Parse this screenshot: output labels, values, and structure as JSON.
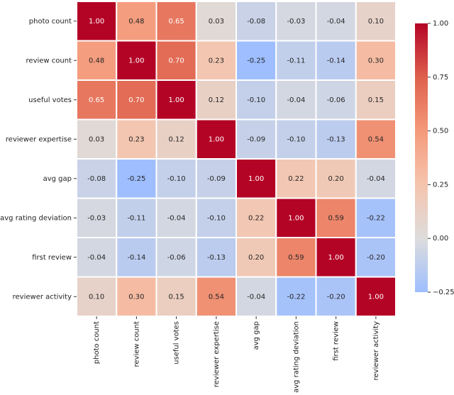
{
  "chart_data": {
    "type": "heatmap",
    "categories": [
      "photo count",
      "review count",
      "useful votes",
      "reviewer expertise",
      "avg gap",
      "avg rating deviation",
      "first review",
      "reviewer activity"
    ],
    "values": [
      [
        1.0,
        0.48,
        0.65,
        0.03,
        -0.08,
        -0.03,
        -0.04,
        0.1
      ],
      [
        0.48,
        1.0,
        0.7,
        0.23,
        -0.25,
        -0.11,
        -0.14,
        0.3
      ],
      [
        0.65,
        0.7,
        1.0,
        0.12,
        -0.1,
        -0.04,
        -0.06,
        0.15
      ],
      [
        0.03,
        0.23,
        0.12,
        1.0,
        -0.09,
        -0.1,
        -0.13,
        0.54
      ],
      [
        -0.08,
        -0.25,
        -0.1,
        -0.09,
        1.0,
        0.22,
        0.2,
        -0.04
      ],
      [
        -0.03,
        -0.11,
        -0.04,
        -0.1,
        0.22,
        1.0,
        0.59,
        -0.22
      ],
      [
        -0.04,
        -0.14,
        -0.06,
        -0.13,
        0.2,
        0.59,
        1.0,
        -0.2
      ],
      [
        0.1,
        0.3,
        0.15,
        0.54,
        -0.04,
        -0.22,
        -0.2,
        1.0
      ]
    ],
    "value_labels": [
      [
        "1.00",
        "0.48",
        "0.65",
        "0.03",
        "-0.08",
        "-0.03",
        "-0.04",
        "0.10"
      ],
      [
        "0.48",
        "1.00",
        "0.70",
        "0.23",
        "-0.25",
        "-0.11",
        "-0.14",
        "0.30"
      ],
      [
        "0.65",
        "0.70",
        "1.00",
        "0.12",
        "-0.10",
        "-0.04",
        "-0.06",
        "0.15"
      ],
      [
        "0.03",
        "0.23",
        "0.12",
        "1.00",
        "-0.09",
        "-0.10",
        "-0.13",
        "0.54"
      ],
      [
        "-0.08",
        "-0.25",
        "-0.10",
        "-0.09",
        "1.00",
        "0.22",
        "0.20",
        "-0.04"
      ],
      [
        "-0.03",
        "-0.11",
        "-0.04",
        "-0.10",
        "0.22",
        "1.00",
        "0.59",
        "-0.22"
      ],
      [
        "-0.04",
        "-0.14",
        "-0.06",
        "-0.13",
        "0.20",
        "0.59",
        "1.00",
        "-0.20"
      ],
      [
        "0.10",
        "0.30",
        "0.15",
        "0.54",
        "-0.04",
        "-0.22",
        "-0.20",
        "1.00"
      ]
    ],
    "colormap": "coolwarm",
    "center": 0,
    "clim": [
      -0.25,
      1.0
    ],
    "cticks": [
      {
        "value": -0.25,
        "label": "−0.25"
      },
      {
        "value": 0,
        "label": "0.00"
      },
      {
        "value": 0.25,
        "label": "0.25"
      },
      {
        "value": 0.5,
        "label": "0.50"
      },
      {
        "value": 0.75,
        "label": "0.75"
      },
      {
        "value": 1.0,
        "label": "1.00"
      }
    ]
  }
}
